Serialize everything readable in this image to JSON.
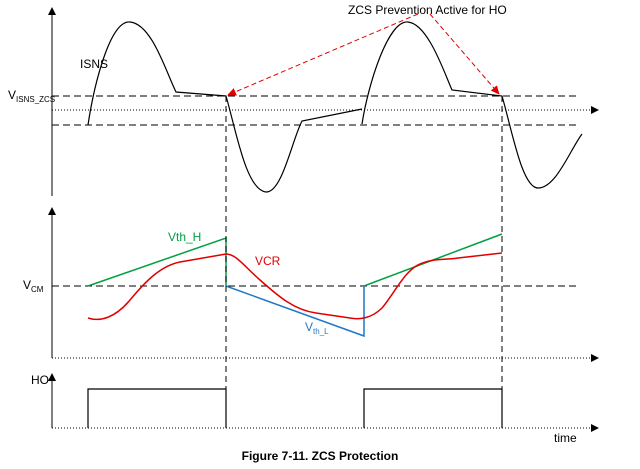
{
  "labels": {
    "isns": "ISNS",
    "visns_main": "V",
    "visns_sub": "ISNS_ZCS",
    "zcs_annotation": "ZCS Prevention Active for HO",
    "vth_h": "Vth_H",
    "vcr": "VCR",
    "vcm_main": "V",
    "vcm_sub": "CM",
    "vth_l_main": "V",
    "vth_l_sub": "th_L",
    "ho": "HO",
    "time": "time"
  },
  "caption": "Figure 7-11. ZCS Protection",
  "colors": {
    "axis": "#000000",
    "annotation": "#e00000",
    "vth_h": "#00a040",
    "vcr": "#e00000",
    "vth_l": "#1f77c8"
  }
}
